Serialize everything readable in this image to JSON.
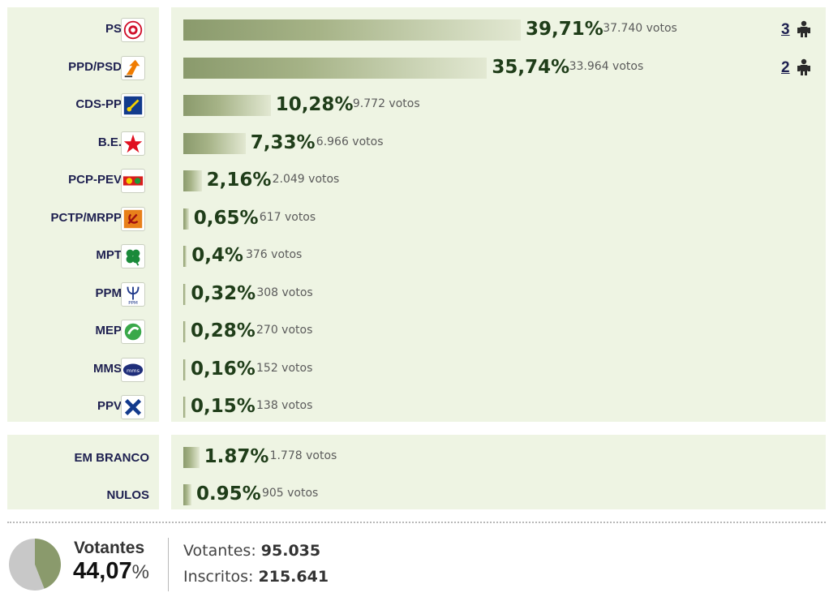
{
  "chart_data": {
    "type": "bar",
    "categories": [
      "PS",
      "PPD/PSD",
      "CDS-PP",
      "B.E.",
      "PCP-PEV",
      "PCTP/MRPP",
      "MPT",
      "PPM",
      "MEP",
      "MMS",
      "PPV"
    ],
    "values": [
      39.71,
      35.74,
      10.28,
      7.33,
      2.16,
      0.65,
      0.4,
      0.32,
      0.28,
      0.16,
      0.15
    ],
    "pct_labels": [
      "39,71%",
      "35,74%",
      "10,28%",
      "7,33%",
      "2,16%",
      "0,65%",
      "0,4%",
      "0,32%",
      "0,28%",
      "0,16%",
      "0,15%"
    ],
    "votes": [
      "37.740 votos",
      "33.964 votos",
      "9.772 votos",
      "6.966 votos",
      "2.049 votos",
      "617 votos",
      "376 votos",
      "308 votos",
      "270 votos",
      "152 votos",
      "138 votos"
    ],
    "seats": [
      "3",
      "2",
      "",
      "",
      "",
      "",
      "",
      "",
      "",
      "",
      ""
    ],
    "colors": {
      "bar_dark": "#8a9a6c",
      "bar_light": "#e2e8d2",
      "panel": "#eef4e3",
      "pct_text": "#1f3d19",
      "party_text": "#1e2050"
    }
  },
  "blank_null": {
    "categories": [
      "EM BRANCO",
      "NULOS"
    ],
    "values": [
      1.87,
      0.95
    ],
    "pct_labels": [
      "1.87%",
      "0.95%"
    ],
    "votes": [
      "1.778 votos",
      "905 votos"
    ]
  },
  "turnout": {
    "label": "Votantes",
    "value": 44.07,
    "pct_number": "44,07",
    "pct_symbol": "%",
    "votantes_label": "Votantes:",
    "votantes_value": "95.035",
    "inscritos_label": "Inscritos:",
    "inscritos_value": "215.641"
  },
  "icons": [
    "ps-logo-icon",
    "psd-logo-icon",
    "cds-logo-icon",
    "be-logo-icon",
    "pcp-pev-logo-icon",
    "pctp-logo-icon",
    "mpt-logo-icon",
    "ppm-logo-icon",
    "mep-logo-icon",
    "mms-logo-icon",
    "ppv-logo-icon",
    "person-icon"
  ]
}
